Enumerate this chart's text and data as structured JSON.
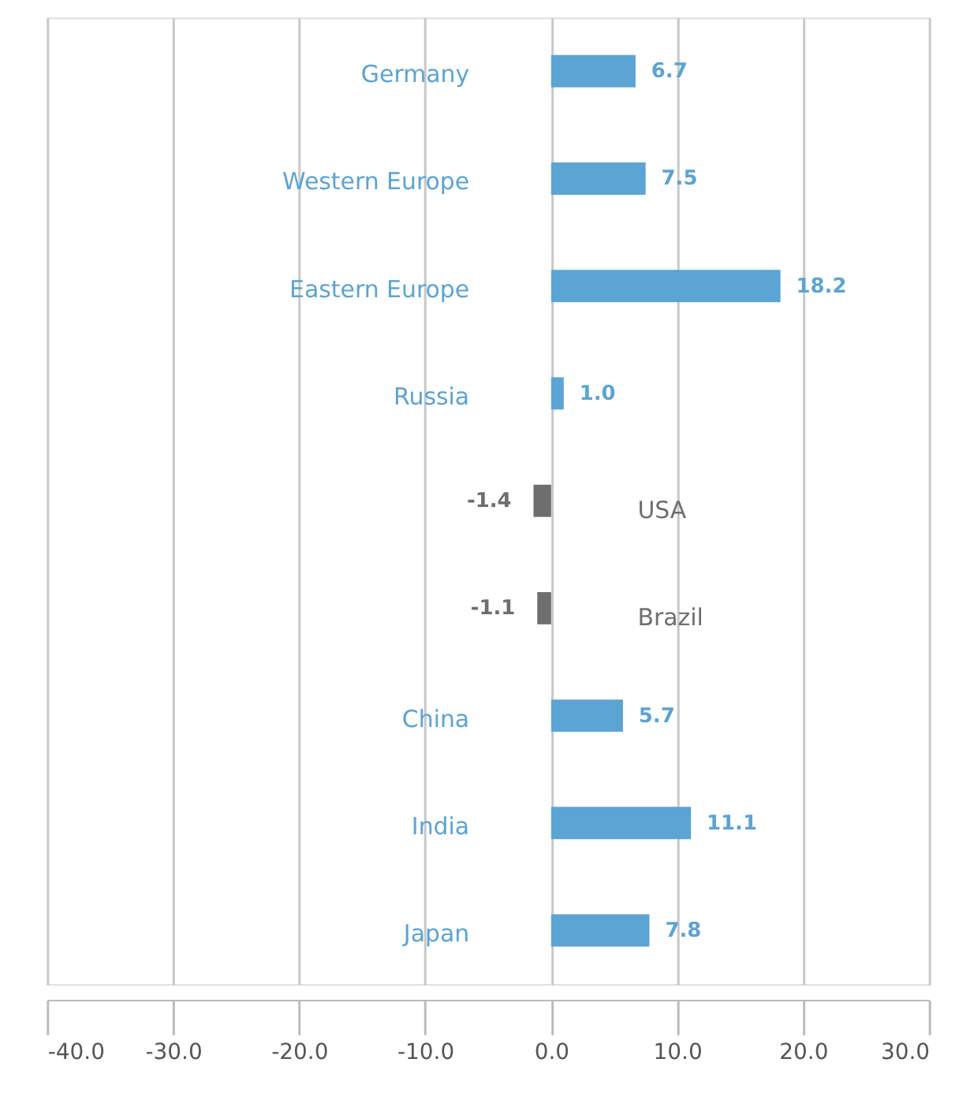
{
  "chart_data": {
    "type": "bar",
    "orientation": "horizontal",
    "categories": [
      "Germany",
      "Western Europe",
      "Eastern Europe",
      "Russia",
      "USA",
      "Brazil",
      "China",
      "India",
      "Japan"
    ],
    "values": [
      6.7,
      7.5,
      18.2,
      1.0,
      -1.4,
      -1.1,
      5.7,
      11.1,
      7.8
    ],
    "colors": [
      "#5ba4d3",
      "#5ba4d3",
      "#5ba4d3",
      "#5ba4d3",
      "#6e6e6e",
      "#6e6e6e",
      "#5ba4d3",
      "#5ba4d3",
      "#5ba4d3"
    ],
    "xlim": [
      -40,
      30
    ],
    "xticks": [
      {
        "value": -40,
        "label": "-40.0"
      },
      {
        "value": -30,
        "label": "-30.0"
      },
      {
        "value": -20,
        "label": "-20.0"
      },
      {
        "value": -10,
        "label": "-10.0"
      },
      {
        "value": 0,
        "label": "0.0"
      },
      {
        "value": 10,
        "label": "10.0"
      },
      {
        "value": 20,
        "label": "20.0"
      },
      {
        "value": 30,
        "label": "30.0"
      }
    ],
    "grid": "x",
    "value_labels": [
      "6.7",
      "7.5",
      "18.2",
      "1.0",
      "-1.4",
      "-1.1",
      "5.7",
      "11.1",
      "7.8"
    ]
  }
}
